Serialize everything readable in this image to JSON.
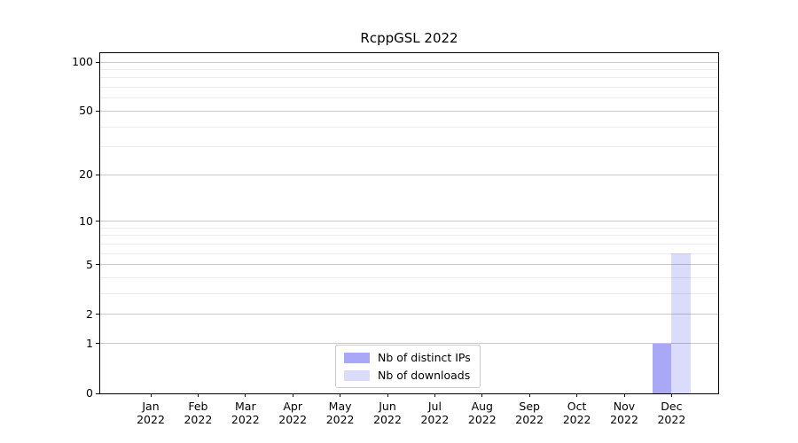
{
  "title": "RcppGSL 2022",
  "chart_data": {
    "type": "bar",
    "title": "RcppGSL 2022",
    "categories": [
      {
        "month": "Jan",
        "year": "2022"
      },
      {
        "month": "Feb",
        "year": "2022"
      },
      {
        "month": "Mar",
        "year": "2022"
      },
      {
        "month": "Apr",
        "year": "2022"
      },
      {
        "month": "May",
        "year": "2022"
      },
      {
        "month": "Jun",
        "year": "2022"
      },
      {
        "month": "Jul",
        "year": "2022"
      },
      {
        "month": "Aug",
        "year": "2022"
      },
      {
        "month": "Sep",
        "year": "2022"
      },
      {
        "month": "Oct",
        "year": "2022"
      },
      {
        "month": "Nov",
        "year": "2022"
      },
      {
        "month": "Dec",
        "year": "2022"
      }
    ],
    "series": [
      {
        "name": "Nb of distinct IPs",
        "color": "rgba(0,0,230,0.34)",
        "values": [
          0,
          0,
          0,
          0,
          0,
          0,
          0,
          0,
          0,
          0,
          0,
          1
        ]
      },
      {
        "name": "Nb of downloads",
        "color": "rgba(0,0,230,0.14)",
        "values": [
          0,
          0,
          0,
          0,
          0,
          0,
          0,
          0,
          0,
          0,
          0,
          6
        ]
      }
    ],
    "xlabel": "",
    "ylabel": "",
    "yscale": "log1p",
    "ylim": [
      0,
      113
    ],
    "y_tick_values": [
      0,
      1,
      2,
      5,
      10,
      20,
      50,
      100
    ],
    "y_tick_labels": [
      "0",
      "1",
      "2",
      "5",
      "10",
      "20",
      "50",
      "100"
    ],
    "y_minor_gridlines": [
      3,
      4,
      6,
      7,
      8,
      9,
      30,
      40,
      60,
      70,
      80,
      90
    ],
    "grid": "horizontal",
    "legend_position": "lower center"
  },
  "colors": {
    "background": "#ffffff",
    "axis": "#000000",
    "text": "#000000",
    "grid_major": "#c9c9c9",
    "grid_minor": "#ececec",
    "legend_border": "#cccccc",
    "bar_distinct_ips": "rgba(0,0,230,0.34)",
    "bar_downloads": "rgba(0,0,230,0.14)"
  }
}
